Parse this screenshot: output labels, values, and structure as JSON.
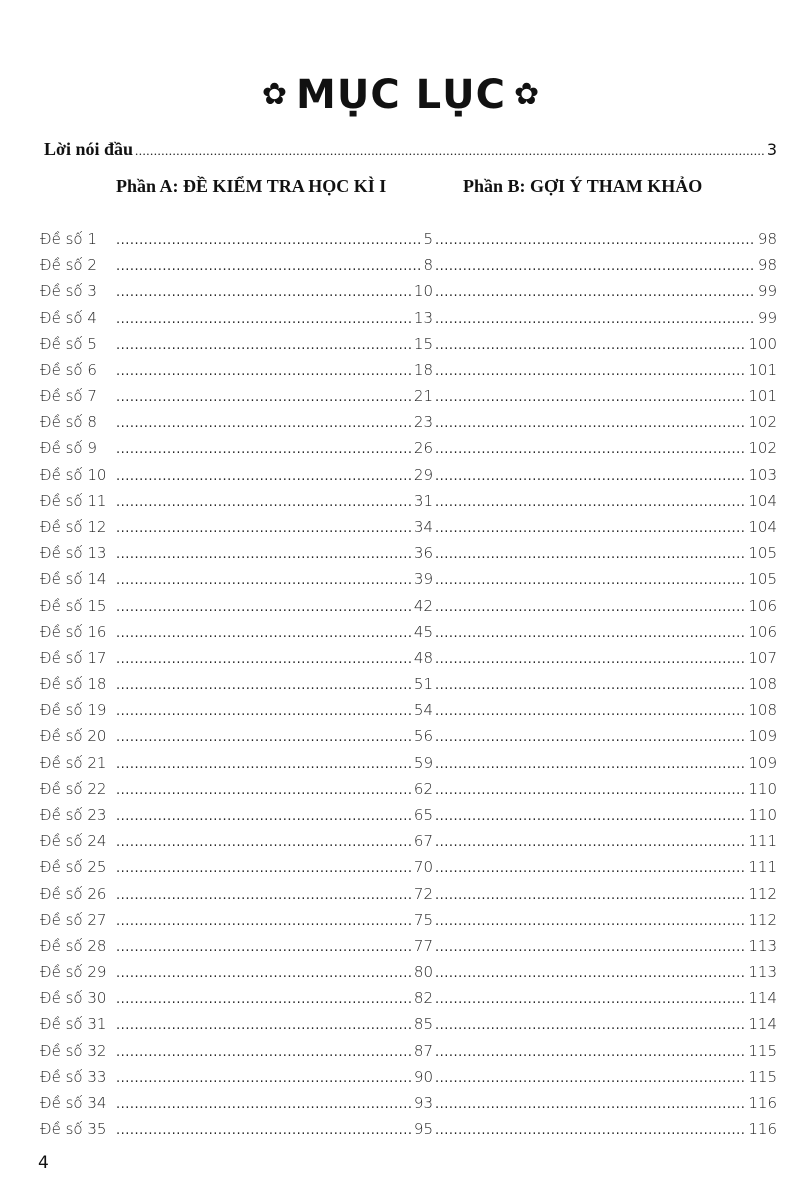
{
  "title": "MỤC LỤC",
  "title_icon": "flower-icon",
  "intro": {
    "label": "Lời nói đầu",
    "page": "3"
  },
  "sections": {
    "a": "Phần A: ĐỀ KIỂM TRA HỌC KÌ I",
    "b": "Phần B: GỢI Ý THAM KHẢO"
  },
  "entries": [
    {
      "label": "Đề số 1",
      "a": "5",
      "b": "98"
    },
    {
      "label": "Đề số 2",
      "a": "8",
      "b": "98"
    },
    {
      "label": "Đề số 3",
      "a": "10",
      "b": "99"
    },
    {
      "label": "Đề số 4",
      "a": "13",
      "b": "99"
    },
    {
      "label": "Đề số 5",
      "a": "15",
      "b": "100"
    },
    {
      "label": "Đề số 6",
      "a": "18",
      "b": "101"
    },
    {
      "label": "Đề số 7",
      "a": "21",
      "b": "101"
    },
    {
      "label": "Đề số 8",
      "a": "23",
      "b": "102"
    },
    {
      "label": "Đề số 9",
      "a": "26",
      "b": "102"
    },
    {
      "label": "Đề số 10",
      "a": "29",
      "b": "103"
    },
    {
      "label": "Đề số 11",
      "a": "31",
      "b": "104"
    },
    {
      "label": "Đề số 12",
      "a": "34",
      "b": "104"
    },
    {
      "label": "Đề số 13",
      "a": "36",
      "b": "105"
    },
    {
      "label": "Đề số 14",
      "a": "39",
      "b": "105"
    },
    {
      "label": "Đề số 15",
      "a": "42",
      "b": "106"
    },
    {
      "label": "Đề số 16",
      "a": "45",
      "b": "106"
    },
    {
      "label": "Đề số 17",
      "a": "48",
      "b": "107"
    },
    {
      "label": "Đề số 18",
      "a": "51",
      "b": "108"
    },
    {
      "label": "Đề số 19",
      "a": "54",
      "b": "108"
    },
    {
      "label": "Đề số 20",
      "a": "56",
      "b": "109"
    },
    {
      "label": "Đề số 21",
      "a": "59",
      "b": "109"
    },
    {
      "label": "Đề số 22",
      "a": "62",
      "b": "110"
    },
    {
      "label": "Đề số 23",
      "a": "65",
      "b": "110"
    },
    {
      "label": "Đề số 24",
      "a": "67",
      "b": "111"
    },
    {
      "label": "Đề số 25",
      "a": "70",
      "b": "111"
    },
    {
      "label": "Đề số 26",
      "a": "72",
      "b": "112"
    },
    {
      "label": "Đề số 27",
      "a": "75",
      "b": "112"
    },
    {
      "label": "Đề số 28",
      "a": "77",
      "b": "113"
    },
    {
      "label": "Đề số 29",
      "a": "80",
      "b": "113"
    },
    {
      "label": "Đề số 30",
      "a": "82",
      "b": "114"
    },
    {
      "label": "Đề số 31",
      "a": "85",
      "b": "114"
    },
    {
      "label": "Đề số 32",
      "a": "87",
      "b": "115"
    },
    {
      "label": "Đề số 33",
      "a": "90",
      "b": "115"
    },
    {
      "label": "Đề số 34",
      "a": "93",
      "b": "116"
    },
    {
      "label": "Đề số 35",
      "a": "95",
      "b": "116"
    }
  ],
  "page_number": "4"
}
